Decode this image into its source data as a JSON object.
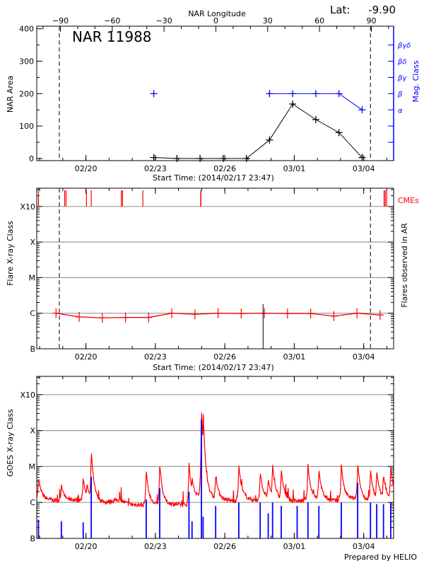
{
  "chart_data": [
    {
      "type": "line",
      "title": "NAR 11988",
      "latitude_label": "Lat:",
      "latitude_value": "-9.90",
      "top_axis_label": "NAR Longitude",
      "top_axis_ticks": [
        "-90",
        "-60",
        "-30",
        "0",
        "30",
        "60",
        "90"
      ],
      "top_axis_range": [
        -103.7,
        102.9
      ],
      "xlabel": "Start Time: (2014/02/17 23:47)",
      "xlim": [
        "2014-02-17T21:00",
        "2014-03-05T07:00"
      ],
      "x_tick_labels": [
        "02/20",
        "02/23",
        "02/26",
        "03/01",
        "03/04"
      ],
      "ylabel": "NAR Area",
      "ylim": [
        0,
        400
      ],
      "y_ticks": [
        "0",
        "100",
        "200",
        "300",
        "400"
      ],
      "limb_markers_longitude": [
        -90,
        90
      ],
      "limb_marker_dates": [
        "2014-02-18T20:24",
        "2014-03-04T07:00"
      ],
      "series": [
        {
          "name": "NAR Area",
          "color": "#000000",
          "x": [
            "2014-02-22T22:20",
            "2014-02-23T22:20",
            "2014-02-24T22:20",
            "2014-02-25T22:20",
            "2014-02-26T22:20",
            "2014-02-27T22:20",
            "2014-02-28T22:20",
            "2014-03-01T22:20",
            "2014-03-02T22:20",
            "2014-03-03T22:20"
          ],
          "values": [
            3,
            0,
            0,
            0,
            0,
            57,
            168,
            120,
            80,
            3
          ]
        },
        {
          "name": "Mag. Class",
          "color": "#0000ff",
          "x": [
            "2014-02-22T22:20",
            "2014-02-27T22:20",
            "2014-02-28T22:20",
            "2014-03-01T22:20",
            "2014-03-02T22:20",
            "2014-03-03T22:20"
          ],
          "values": [
            "β",
            "β",
            "β",
            "β",
            "β",
            "α"
          ],
          "connected_from_index": 1
        }
      ],
      "right_axis_label": "Mag. Class",
      "right_axis_classes": [
        "α",
        "β",
        "βγ",
        "βδ",
        "βγδ"
      ]
    },
    {
      "type": "line",
      "xlabel": "Start Time: (2014/02/17 23:47)",
      "xlim": [
        "2014-02-17T21:00",
        "2014-03-05T07:00"
      ],
      "x_tick_labels": [
        "02/20",
        "02/23",
        "02/26",
        "03/01",
        "03/04"
      ],
      "ylabel": "Flare X-ray Class",
      "right_label": "Flares observed in AR",
      "y_scale": "log",
      "y_ticks": [
        "B",
        "C",
        "M",
        "X",
        "X10"
      ],
      "grid": true,
      "cme_label": "CMEs",
      "cme_color": "#ff0000",
      "cme_times": [
        "2014-02-17T22:48",
        "2014-02-19T01:55",
        "2014-02-19T03:20",
        "2014-02-20T00:30",
        "2014-02-20T05:30",
        "2014-02-21T12:43",
        "2014-02-21T13:55",
        "2014-02-22T11:00",
        "2014-02-24T23:00",
        "2014-02-24T23:15",
        "2014-03-04T21:07",
        "2014-03-04T22:19",
        "2014-03-04T23:45"
      ],
      "background_series": {
        "color": "#ff0000",
        "x": [
          "2014-02-18T17:00",
          "2014-02-19T17:00",
          "2014-02-20T17:00",
          "2014-02-21T17:00",
          "2014-02-22T17:00",
          "2014-02-23T17:00",
          "2014-02-24T17:00",
          "2014-02-25T17:00",
          "2014-02-26T17:00",
          "2014-02-27T17:00",
          "2014-02-28T17:00",
          "2014-03-01T17:00",
          "2014-03-02T17:00",
          "2014-03-03T17:00",
          "2014-03-04T17:00"
        ],
        "values": [
          "C1.0",
          "B7.9",
          "B7.4",
          "B7.6",
          "B7.6",
          "C1.0",
          "B9.3",
          "C1.0",
          "B9.8",
          "C1.0",
          "B9.8",
          "B9.8",
          "B8.3",
          "C1.0",
          "B8.9"
        ]
      },
      "flares": [
        {
          "time": "2014-02-27T15:40",
          "class": "C1.8",
          "color": "#000000"
        }
      ],
      "limb_marker_dates": [
        "2014-02-18T20:24",
        "2014-03-04T07:00"
      ]
    },
    {
      "type": "line",
      "xlim": [
        "2014-02-17T21:00",
        "2014-03-05T07:00"
      ],
      "x_tick_labels": [
        "02/20",
        "02/23",
        "02/26",
        "03/01",
        "03/04"
      ],
      "ylabel": "GOES X-ray Class",
      "y_scale": "log",
      "y_ticks": [
        "B",
        "C",
        "M",
        "X",
        "X10"
      ],
      "grid": true,
      "footer": "Prepared by HELIO",
      "series": [
        {
          "color": "#ff0000",
          "baseline_every_12h": [
            "C1.3",
            "C1.2",
            "C1.1",
            "C1.2",
            "C1.1",
            "C1.1",
            "C1.0",
            "C1.2",
            "B9.0",
            "B8.5",
            "B8.5",
            "B8.8",
            "B9.0",
            "B8.2",
            "C1.5",
            "C1.3",
            "C1.2",
            "C1.1",
            "C1.3",
            "C1.1",
            "C1.4",
            "C1.2",
            "C1.1",
            "C1.1",
            "C1.3",
            "C1.2",
            "C1.1",
            "C1.3",
            "C1.2",
            "C1.1",
            "C1.3",
            "C1.2",
            "C1.0",
            "C1.3"
          ],
          "peaks": [
            {
              "time": "2014-02-17T22:48",
              "class": "C5.0"
            },
            {
              "time": "2014-02-18T22:30",
              "class": "C3.2"
            },
            {
              "time": "2014-02-19T21:10",
              "class": "C5.0"
            },
            {
              "time": "2014-02-20T01:00",
              "class": "C3.4"
            },
            {
              "time": "2014-02-20T05:30",
              "class": "M3.0"
            },
            {
              "time": "2014-02-22T14:30",
              "class": "C8.0"
            },
            {
              "time": "2014-02-23T04:30",
              "class": "M1.2"
            },
            {
              "time": "2014-02-24T10:50",
              "class": "M1.3"
            },
            {
              "time": "2014-02-24T14:00",
              "class": "C5.2"
            },
            {
              "time": "2014-02-24T23:45",
              "class": "X5.4"
            },
            {
              "time": "2014-02-25T01:30",
              "class": "X3.9"
            },
            {
              "time": "2014-02-25T04:00",
              "class": "C4.6"
            },
            {
              "time": "2014-02-25T14:30",
              "class": "C6.0"
            },
            {
              "time": "2014-02-26T14:30",
              "class": "M1.2"
            },
            {
              "time": "2014-02-27T12:40",
              "class": "C7.2"
            },
            {
              "time": "2014-02-27T21:00",
              "class": "C4.3"
            },
            {
              "time": "2014-02-28T01:30",
              "class": "M1.2"
            },
            {
              "time": "2014-02-28T10:30",
              "class": "C8.5"
            },
            {
              "time": "2014-03-01T14:10",
              "class": "M1.2"
            },
            {
              "time": "2014-03-02T01:30",
              "class": "C8.7"
            },
            {
              "time": "2014-03-03T00:45",
              "class": "M1.2"
            },
            {
              "time": "2014-03-03T17:45",
              "class": "M1.3"
            },
            {
              "time": "2014-03-04T07:00",
              "class": "C8.5"
            },
            {
              "time": "2014-03-04T13:30",
              "class": "C8.0"
            },
            {
              "time": "2014-03-04T20:30",
              "class": "C5.8"
            },
            {
              "time": "2014-03-05T04:00",
              "class": "M1.1"
            }
          ]
        },
        {
          "color": "#0000ff",
          "peaks": [
            {
              "time": "2014-02-17T22:48",
              "class": "B3.3"
            },
            {
              "time": "2014-02-18T22:30",
              "class": "B3.0"
            },
            {
              "time": "2014-02-19T21:10",
              "class": "B2.8"
            },
            {
              "time": "2014-02-20T05:30",
              "class": "C5.2"
            },
            {
              "time": "2014-02-22T14:30",
              "class": "C1.2"
            },
            {
              "time": "2014-02-23T04:30",
              "class": "C2.5"
            },
            {
              "time": "2014-02-24T10:50",
              "class": "C2.0"
            },
            {
              "time": "2014-02-24T14:00",
              "class": "B3.0"
            },
            {
              "time": "2014-02-24T23:45",
              "class": "X2.0"
            },
            {
              "time": "2014-02-25T01:30",
              "class": "B4.0"
            },
            {
              "time": "2014-02-25T14:30",
              "class": "B8.0"
            },
            {
              "time": "2014-02-26T14:30",
              "class": "C1.0"
            },
            {
              "time": "2014-02-27T12:40",
              "class": "C1.0"
            },
            {
              "time": "2014-02-27T21:00",
              "class": "B5.0"
            },
            {
              "time": "2014-02-28T01:30",
              "class": "C1.0"
            },
            {
              "time": "2014-02-28T10:30",
              "class": "B8.0"
            },
            {
              "time": "2014-03-01T03:00",
              "class": "B8.0"
            },
            {
              "time": "2014-03-01T14:10",
              "class": "C1.0"
            },
            {
              "time": "2014-03-02T01:30",
              "class": "B8.0"
            },
            {
              "time": "2014-03-03T00:45",
              "class": "C1.0"
            },
            {
              "time": "2014-03-03T17:45",
              "class": "C3.5"
            },
            {
              "time": "2014-03-04T07:00",
              "class": "C1.0"
            },
            {
              "time": "2014-03-04T13:30",
              "class": "B9.0"
            },
            {
              "time": "2014-03-04T20:30",
              "class": "B9.0"
            },
            {
              "time": "2014-03-05T04:00",
              "class": "C1.0"
            }
          ]
        }
      ]
    }
  ]
}
